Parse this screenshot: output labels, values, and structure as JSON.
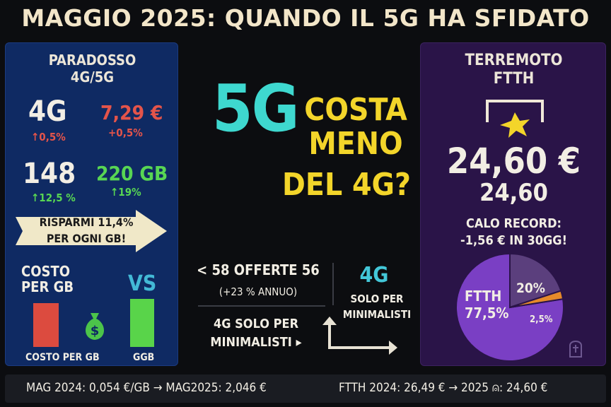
{
  "title": "MAGGIO 2025: QUANDO IL 5G HA SFIDATO",
  "left_panel": {
    "title_line1": "PARADOSSO",
    "title_line2": "4G/5G",
    "row1": {
      "left_big": "4G",
      "left_sub": "↑0,5%",
      "right_big": "7,29 €",
      "right_sub": "+0,5%"
    },
    "row2": {
      "left_big": "148",
      "left_sub": "↑12,5 %",
      "right_big": "220 GB",
      "right_sub": "↑19%"
    },
    "banner_line1": "RISPARMI 11,4%",
    "banner_line2": "PER OGNI GB!",
    "costo_line1": "COSTO",
    "costo_line2": "PER GB",
    "vs": "VS",
    "xlabel_left": "COSTO PER GB",
    "xlabel_right": "GGB",
    "bar_colors": {
      "left": "#dc4b3f",
      "right": "#59d44a"
    }
  },
  "center": {
    "big_5g": "5G",
    "question_line1": "COSTA",
    "question_line2": "MENO",
    "question_line3": "DEL 4G?",
    "stat_line1": "< 58 OFFERTE 56",
    "stat_line2": "(+23 % ANNUO)",
    "min_line1": "4G SOLO PER",
    "min_line2": "MINIMALISTI ▸",
    "fourg": "4G",
    "min2_line1": "SOLO PER",
    "min2_line2": "MINIMALISTI"
  },
  "right_panel": {
    "title_line1": "TERREMOTO",
    "title_line2": "FTTH",
    "price_big": "24,60 €",
    "price_small": "24,60",
    "calo_line1": "CALO RECORD:",
    "calo_line2": "-1,56 € IN 30GG!",
    "pie": {
      "ftth_label": "FTTH",
      "ftth_value": "77,5%",
      "slice2_label": "20%",
      "slice3_label": "2,5%",
      "colors": {
        "ftth": "#7a3fc4",
        "slice2": "#5b3f7d",
        "slice3": "#e58a2a"
      }
    }
  },
  "footer": {
    "left": "MAG 2024: 0,054 €/GB → MAG2025: 2,046 €",
    "right": "FTTH 2024: 26,49 € → 2025 ⍝: 24,60 €"
  }
}
